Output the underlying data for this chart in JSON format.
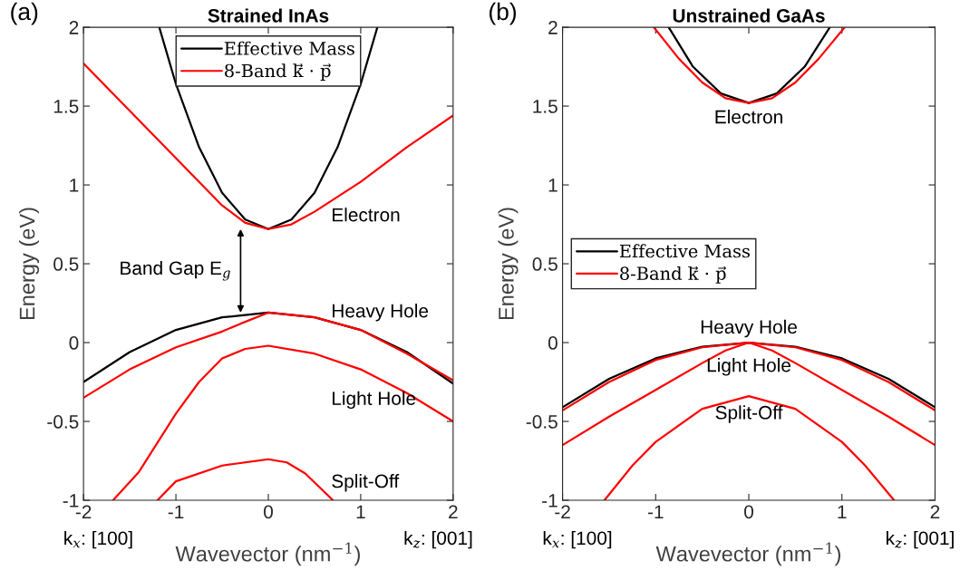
{
  "chart_data": [
    {
      "type": "line",
      "title": "Strained InAs",
      "xlabel": "Wavevector (nm$^{−1}$)",
      "ylabel": "Energy (eV)",
      "xlim": [
        -2,
        2
      ],
      "ylim": [
        -1,
        2
      ],
      "xticks": [
        -2,
        -1,
        0,
        1,
        2
      ],
      "yticks": [
        -1,
        -0.5,
        0,
        0.5,
        1,
        1.5,
        2
      ],
      "legend": "top",
      "grid": false,
      "line_style": "solid",
      "series": [
        {
          "name": "Effective Mass",
          "color": "#000000",
          "x": [
            -1.18,
            -1,
            -0.75,
            -0.5,
            -0.25,
            0,
            0.25,
            0.5,
            0.75,
            1,
            1.18
          ],
          "values": [
            2.0,
            1.64,
            1.24,
            0.95,
            0.78,
            0.72,
            0.78,
            0.95,
            1.24,
            1.64,
            2.0
          ]
        },
        {
          "name": "8-Band k⃗ · p⃗",
          "color": "#ff0000",
          "x": [
            -2,
            -1.5,
            -1,
            -0.5,
            -0.25,
            0,
            0.25,
            0.5,
            1,
            1.5,
            2
          ],
          "values": [
            1.77,
            1.47,
            1.17,
            0.87,
            0.76,
            0.72,
            0.75,
            0.83,
            1.02,
            1.24,
            1.44
          ]
        },
        {
          "color": "#000000",
          "x": [
            -2,
            -1.5,
            -1,
            -0.5,
            0,
            0.5,
            1,
            1.5,
            2
          ],
          "values": [
            -0.25,
            -0.06,
            0.08,
            0.16,
            0.19,
            0.16,
            0.08,
            -0.06,
            -0.26
          ]
        },
        {
          "color": "#ff0000",
          "x": [
            -2,
            -1.5,
            -1,
            -0.5,
            -0.3,
            0,
            0.5,
            1,
            1.5,
            2
          ],
          "values": [
            -0.35,
            -0.17,
            -0.03,
            0.07,
            0.12,
            0.19,
            0.16,
            0.08,
            -0.07,
            -0.24
          ]
        },
        {
          "color": "#ff0000",
          "x": [
            -1.68,
            -1.4,
            -1,
            -0.75,
            -0.5,
            -0.25,
            0,
            0.5,
            1,
            1.5,
            2
          ],
          "values": [
            -1.0,
            -0.82,
            -0.45,
            -0.25,
            -0.1,
            -0.04,
            -0.02,
            -0.07,
            -0.17,
            -0.32,
            -0.5
          ]
        },
        {
          "color": "#ff0000",
          "x": [
            -1.2,
            -1,
            -0.5,
            0,
            0.2,
            0.4,
            0.7
          ],
          "values": [
            -1.0,
            -0.88,
            -0.78,
            -0.74,
            -0.76,
            -0.83,
            -1.0
          ]
        }
      ],
      "annotations": [
        "(a)",
        "k$_{x}$: [100]",
        "k$_{z}$: [001]",
        "Electron",
        "Heavy Hole",
        "Light Hole",
        "Split-Off",
        "Band Gap E$_{g}$"
      ]
    },
    {
      "type": "line",
      "title": "Unstrained GaAs",
      "xlabel": "Wavevector (nm$^{−1}$)",
      "ylabel": "Energy (eV)",
      "xlim": [
        -2,
        2
      ],
      "ylim": [
        -1,
        2
      ],
      "xticks": [
        -2,
        -1,
        0,
        1,
        2
      ],
      "yticks": [
        -1,
        -0.5,
        0,
        0.5,
        1,
        1.5,
        2
      ],
      "legend": "left",
      "grid": false,
      "line_style": "solid",
      "series": [
        {
          "name": "Effective Mass",
          "color": "#000000",
          "x": [
            -0.86,
            -0.6,
            -0.3,
            0,
            0.3,
            0.6,
            0.87
          ],
          "values": [
            2.0,
            1.75,
            1.58,
            1.52,
            1.58,
            1.75,
            2.0
          ]
        },
        {
          "name": "8-Band k⃗ · p⃗",
          "color": "#ff0000",
          "x": [
            -1.02,
            -0.75,
            -0.5,
            -0.25,
            0,
            0.25,
            0.5,
            0.75,
            1.03
          ],
          "values": [
            2.0,
            1.8,
            1.65,
            1.55,
            1.52,
            1.55,
            1.65,
            1.8,
            2.0
          ]
        },
        {
          "color": "#000000",
          "x": [
            -2,
            -1.5,
            -1,
            -0.5,
            0,
            0.5,
            1,
            1.5,
            2
          ],
          "values": [
            -0.41,
            -0.23,
            -0.1,
            -0.026,
            0,
            -0.026,
            -0.1,
            -0.23,
            -0.41
          ]
        },
        {
          "color": "#ff0000",
          "x": [
            -2,
            -1.5,
            -1,
            -0.5,
            0,
            0.5,
            1,
            1.5,
            2
          ],
          "values": [
            -0.43,
            -0.25,
            -0.11,
            -0.03,
            0,
            -0.03,
            -0.11,
            -0.25,
            -0.43
          ]
        },
        {
          "color": "#ff0000",
          "x": [
            -2,
            -1.5,
            -1,
            -0.5,
            -0.25,
            0,
            0.25,
            0.5,
            1,
            1.5,
            2
          ],
          "values": [
            -0.65,
            -0.47,
            -0.3,
            -0.13,
            -0.05,
            0,
            -0.05,
            -0.13,
            -0.3,
            -0.47,
            -0.65
          ]
        },
        {
          "color": "#ff0000",
          "x": [
            -1.55,
            -1.25,
            -1,
            -0.5,
            0,
            0.5,
            1,
            1.25,
            1.56
          ],
          "values": [
            -1.0,
            -0.78,
            -0.63,
            -0.42,
            -0.34,
            -0.42,
            -0.63,
            -0.78,
            -1.0
          ]
        }
      ],
      "annotations": [
        "(b)",
        "k$_{x}$: [100]",
        "k$_{z}$: [001]",
        "Electron",
        "Heavy Hole",
        "Light Hole",
        "Split-Off"
      ]
    }
  ]
}
